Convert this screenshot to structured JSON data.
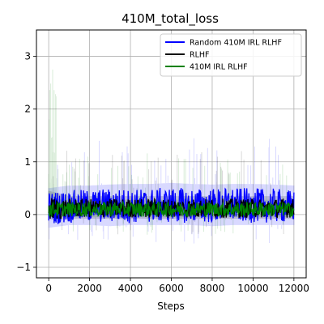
{
  "chart_data": {
    "type": "line",
    "title": "410M_total_loss",
    "xlabel": "Steps",
    "ylabel": "",
    "xlim": [
      -600,
      12600
    ],
    "ylim": [
      -1.2,
      3.5
    ],
    "x_ticks": [
      0,
      2000,
      4000,
      6000,
      8000,
      10000,
      12000
    ],
    "y_ticks": [
      -1,
      0,
      1,
      2,
      3
    ],
    "grid": true,
    "legend_position": "top-right",
    "series": [
      {
        "name": "Random 410M IRL RLHF",
        "color": "#0000ff",
        "x": [
          0,
          1000,
          2000,
          3000,
          4000,
          5000,
          6000,
          7000,
          8000,
          9000,
          10000,
          11000,
          12000
        ],
        "values": [
          0.12,
          0.15,
          0.16,
          0.17,
          0.16,
          0.17,
          0.18,
          0.17,
          0.17,
          0.18,
          0.17,
          0.17,
          0.15
        ],
        "band_low": [
          -0.25,
          -0.2,
          -0.2,
          -0.22,
          -0.2,
          -0.2,
          -0.2,
          -0.2,
          -0.22,
          -0.2,
          -0.2,
          -0.2,
          -0.2
        ],
        "band_high": [
          0.5,
          0.55,
          0.55,
          0.57,
          0.58,
          0.58,
          0.6,
          0.58,
          0.57,
          0.58,
          0.58,
          0.57,
          0.55
        ]
      },
      {
        "name": "RLHF",
        "color": "#000000",
        "x": [
          0,
          1000,
          2000,
          3000,
          4000,
          5000,
          6000,
          7000,
          8000,
          9000,
          10000,
          11000,
          12000
        ],
        "values": [
          0.1,
          0.12,
          0.12,
          0.12,
          0.12,
          0.12,
          0.12,
          0.12,
          0.12,
          0.12,
          0.12,
          0.12,
          0.12
        ],
        "band_low": [
          -0.1,
          -0.08,
          -0.08,
          -0.08,
          -0.08,
          -0.08,
          -0.08,
          -0.08,
          -0.08,
          -0.08,
          -0.08,
          -0.08,
          -0.08
        ],
        "band_high": [
          0.45,
          0.35,
          0.35,
          0.35,
          0.35,
          0.35,
          0.35,
          0.35,
          0.35,
          0.35,
          0.35,
          0.35,
          0.35
        ]
      },
      {
        "name": "410M IRL RLHF",
        "color": "#008000",
        "x": [
          0,
          1000,
          2000,
          3000,
          4000,
          5000,
          6000,
          7000,
          8000,
          9000,
          10000,
          11000,
          12000
        ],
        "values": [
          0.1,
          0.1,
          0.1,
          0.1,
          0.1,
          0.1,
          0.1,
          0.1,
          0.1,
          0.1,
          0.1,
          0.1,
          0.1
        ],
        "band_low": [
          -0.05,
          -0.05,
          -0.05,
          -0.05,
          -0.05,
          -0.05,
          -0.05,
          -0.05,
          -0.05,
          -0.05,
          -0.05,
          -0.05,
          -0.05
        ],
        "band_high": [
          0.3,
          0.28,
          0.28,
          0.28,
          0.28,
          0.28,
          0.28,
          0.28,
          0.28,
          0.28,
          0.28,
          0.28,
          0.28
        ]
      }
    ]
  }
}
